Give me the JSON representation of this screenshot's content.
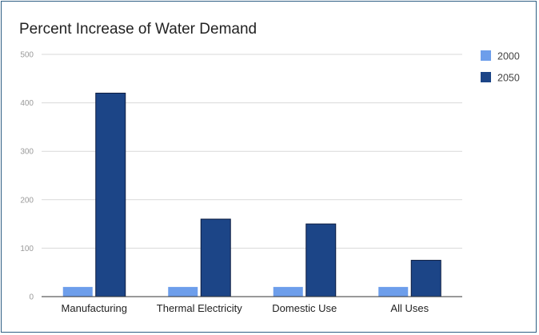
{
  "chart_data": {
    "type": "bar",
    "title": "Percent Increase of Water Demand",
    "xlabel": "",
    "ylabel": "",
    "ylim": [
      0,
      500
    ],
    "yticks": [
      0,
      100,
      200,
      300,
      400,
      500
    ],
    "grid": true,
    "legend_position": "right",
    "categories": [
      "Manufacturing",
      "Thermal Electricity",
      "Domestic Use",
      "All Uses"
    ],
    "series": [
      {
        "name": "2000",
        "color": "#6d9eeb",
        "values": [
          20,
          20,
          20,
          20
        ]
      },
      {
        "name": "2050",
        "color": "#1c4587",
        "values": [
          420,
          160,
          150,
          75
        ]
      }
    ]
  }
}
